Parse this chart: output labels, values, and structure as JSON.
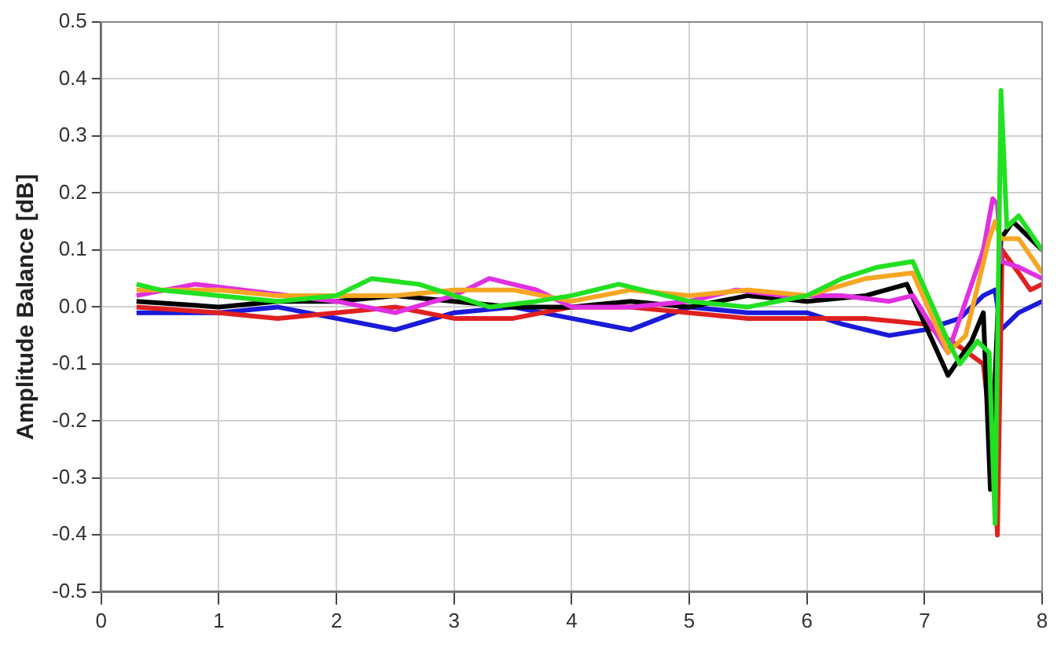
{
  "chart_data": {
    "type": "line",
    "ylabel": "Amplitude Balance [dB]",
    "xlim": [
      0,
      8
    ],
    "xticks": [
      0,
      1,
      2,
      3,
      4,
      5,
      6,
      7,
      8
    ],
    "ylim": [
      -0.5,
      0.5
    ],
    "yticks": [
      {
        "value": -0.5,
        "label": "-0.5"
      },
      {
        "value": -0.4,
        "label": "-0.4"
      },
      {
        "value": -0.3,
        "label": "-0.3"
      },
      {
        "value": -0.2,
        "label": "-0.2"
      },
      {
        "value": -0.1,
        "label": "-0.1"
      },
      {
        "value": 0,
        "label": "0.0"
      },
      {
        "value": 0.1,
        "label": "0.1"
      },
      {
        "value": 0.2,
        "label": "0.2"
      },
      {
        "value": 0.3,
        "label": "0.3"
      },
      {
        "value": 0.4,
        "label": "0.4"
      },
      {
        "value": 0.5,
        "label": "0.5"
      }
    ],
    "grid": true,
    "legend": false,
    "marker": "none",
    "line_style": "solid",
    "series": [
      {
        "color": "#22e022",
        "x": [
          0.3,
          0.5,
          1,
          1.5,
          2,
          2.3,
          2.7,
          3,
          3.3,
          3.7,
          4,
          4.4,
          4.8,
          5,
          5.5,
          6,
          6.3,
          6.6,
          6.9,
          7.2,
          7.3,
          7.45,
          7.55,
          7.6,
          7.65,
          7.7,
          7.8,
          8
        ],
        "values": [
          0.04,
          0.03,
          0.02,
          0.01,
          0.02,
          0.05,
          0.04,
          0.02,
          0.0,
          0.01,
          0.02,
          0.04,
          0.02,
          0.01,
          0.0,
          0.02,
          0.05,
          0.07,
          0.08,
          -0.06,
          -0.1,
          -0.06,
          -0.08,
          -0.38,
          0.38,
          0.14,
          0.16,
          0.1
        ]
      },
      {
        "color": "#f5a623",
        "x": [
          0.3,
          1,
          1.5,
          2,
          2.5,
          3,
          3.5,
          4,
          4.5,
          5,
          5.5,
          6,
          6.5,
          6.9,
          7.2,
          7.35,
          7.55,
          7.6,
          7.65,
          7.8,
          8
        ],
        "values": [
          0.03,
          0.03,
          0.02,
          0.02,
          0.02,
          0.03,
          0.03,
          0.01,
          0.03,
          0.02,
          0.03,
          0.02,
          0.05,
          0.06,
          -0.08,
          -0.05,
          0.12,
          0.15,
          0.12,
          0.12,
          0.06
        ]
      },
      {
        "color": "#e030e0",
        "x": [
          0.3,
          0.8,
          1.2,
          2,
          2.5,
          3,
          3.3,
          3.7,
          4,
          4.5,
          5,
          5.4,
          5.8,
          6.3,
          6.7,
          6.9,
          7.2,
          7.5,
          7.58,
          7.62,
          7.65,
          7.8,
          8
        ],
        "values": [
          0.02,
          0.04,
          0.03,
          0.01,
          -0.01,
          0.02,
          0.05,
          0.03,
          0.0,
          0.0,
          0.01,
          0.03,
          0.02,
          0.02,
          0.01,
          0.02,
          -0.08,
          0.1,
          0.19,
          0.18,
          0.08,
          0.07,
          0.05
        ]
      },
      {
        "color": "#000000",
        "x": [
          0.3,
          1,
          1.5,
          2,
          2.5,
          3,
          3.5,
          4,
          4.5,
          5,
          5.5,
          6,
          6.5,
          6.85,
          7.2,
          7.4,
          7.5,
          7.56,
          7.65,
          7.75,
          8
        ],
        "values": [
          0.01,
          0.0,
          0.01,
          0.01,
          0.02,
          0.01,
          0.0,
          0.0,
          0.01,
          0.0,
          0.02,
          0.01,
          0.02,
          0.04,
          -0.12,
          -0.06,
          -0.01,
          -0.32,
          0.12,
          0.15,
          0.1
        ]
      },
      {
        "color": "#e02020",
        "x": [
          0.3,
          1,
          1.5,
          2,
          2.5,
          3,
          3.5,
          4,
          4.5,
          5,
          5.5,
          6,
          6.5,
          7,
          7.3,
          7.5,
          7.58,
          7.62,
          7.66,
          7.8,
          7.9,
          8
        ],
        "values": [
          0.0,
          -0.01,
          -0.02,
          -0.01,
          0.0,
          -0.02,
          -0.02,
          0.0,
          0.0,
          -0.01,
          -0.02,
          -0.02,
          -0.02,
          -0.03,
          -0.07,
          -0.1,
          -0.25,
          -0.4,
          0.1,
          0.06,
          0.03,
          0.04
        ]
      },
      {
        "color": "#1a1ad8",
        "x": [
          0.3,
          1,
          1.5,
          2,
          2.5,
          3,
          3.5,
          4,
          4.5,
          5,
          5.5,
          6,
          6.3,
          6.7,
          7,
          7.3,
          7.5,
          7.6,
          7.65,
          7.8,
          8
        ],
        "values": [
          -0.01,
          -0.01,
          0.0,
          -0.02,
          -0.04,
          -0.01,
          0.0,
          -0.02,
          -0.04,
          0.0,
          -0.01,
          -0.01,
          -0.03,
          -0.05,
          -0.04,
          -0.02,
          0.02,
          0.03,
          -0.04,
          -0.01,
          0.01
        ]
      }
    ]
  }
}
